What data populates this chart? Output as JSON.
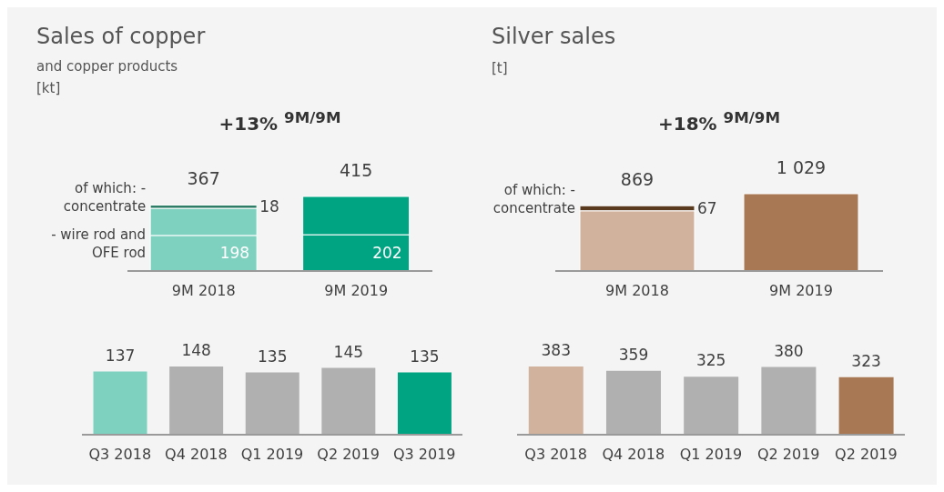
{
  "chart_data": [
    {
      "type": "bar",
      "title": "Sales of copper",
      "subtitle": "and copper products",
      "ylabel": "[kt]",
      "annotations": [
        "+13% $^{9M/9M}$"
      ],
      "categories": [
        "9M 2018",
        "9M 2019"
      ],
      "stacked": true,
      "totals": [
        "367",
        "415"
      ],
      "series": [
        {
          "name": "- wire rod and OFE rod",
          "colors": [
            "#7fd1bf",
            "#00a482"
          ],
          "values": [
            198,
            202
          ],
          "value_labels": [
            "198",
            "202"
          ]
        },
        {
          "colors": [
            "#7fd1bf",
            "#00a482"
          ],
          "values": [
            151,
            213
          ]
        },
        {
          "name": "of which: - concentrate",
          "colors": [
            "#2e7d66",
            "#2e7d66"
          ],
          "values": [
            18,
            null
          ],
          "value_labels": [
            "18",
            null
          ]
        }
      ]
    },
    {
      "type": "bar",
      "title": "Silver sales",
      "ylabel": "[t]",
      "annotations": [
        "+18% $^{9M/9M}$"
      ],
      "categories": [
        "9M 2018",
        "9M 2019"
      ],
      "stacked": true,
      "totals": [
        "869",
        "1 029"
      ],
      "series": [
        {
          "colors": [
            "#d1b39d",
            "#a87753"
          ],
          "values": [
            802,
            1029
          ]
        },
        {
          "name": "of which: - concentrate",
          "colors": [
            "#5a3a1e",
            "#5a3a1e"
          ],
          "values": [
            67,
            null
          ],
          "value_labels": [
            "67",
            null
          ]
        }
      ]
    },
    {
      "type": "bar",
      "categories": [
        "Q3 2018",
        "Q4 2018",
        "Q1 2019",
        "Q2 2019",
        "Q3 2019"
      ],
      "values": [
        137,
        148,
        135,
        145,
        135
      ],
      "colors": [
        "#7fd1bf",
        "#b0b0b0",
        "#b0b0b0",
        "#b0b0b0",
        "#00a482"
      ],
      "data_labels": true
    },
    {
      "type": "bar",
      "categories": [
        "Q3 2018",
        "Q4 2018",
        "Q1 2019",
        "Q2 2019",
        "Q2 2019"
      ],
      "values": [
        383,
        359,
        325,
        380,
        323
      ],
      "colors": [
        "#d1b39d",
        "#b0b0b0",
        "#b0b0b0",
        "#b0b0b0",
        "#a87753"
      ],
      "data_labels": true
    }
  ]
}
